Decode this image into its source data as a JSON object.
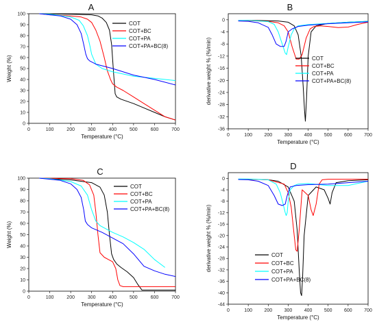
{
  "chart_data": [
    {
      "panel": "A",
      "type": "line",
      "xlabel": "Temperature (°C)",
      "ylabel": "Weight (%)",
      "xlim": [
        0,
        700
      ],
      "ylim": [
        0,
        100
      ],
      "xticks": [
        0,
        100,
        200,
        300,
        400,
        500,
        600,
        700
      ],
      "yticks": [
        0,
        10,
        20,
        30,
        40,
        50,
        60,
        70,
        80,
        90,
        100
      ],
      "legend_position": "top-right",
      "series": [
        {
          "name": "COT",
          "color": "#000000",
          "x": [
            50,
            100,
            200,
            300,
            330,
            350,
            370,
            385,
            395,
            405,
            412,
            420,
            440,
            500,
            550,
            600,
            650,
            700
          ],
          "y": [
            100,
            99.8,
            99.5,
            99,
            98,
            96,
            92,
            85,
            72,
            45,
            27,
            24,
            22,
            18,
            14,
            10,
            6,
            3
          ]
        },
        {
          "name": "COT+BC",
          "color": "#ff0000",
          "x": [
            50,
            100,
            200,
            250,
            280,
            300,
            320,
            340,
            360,
            375,
            390,
            400,
            420,
            450,
            500,
            550,
            600,
            650,
            700
          ],
          "y": [
            100,
            99,
            98,
            97,
            95,
            92,
            85,
            75,
            60,
            48,
            40,
            36,
            33,
            30,
            24,
            18,
            12,
            6,
            3
          ]
        },
        {
          "name": "COT+PA",
          "color": "#00ffff",
          "x": [
            50,
            100,
            200,
            240,
            260,
            280,
            290,
            300,
            320,
            350,
            400,
            500,
            600,
            700
          ],
          "y": [
            100,
            99.5,
            97,
            94,
            89,
            80,
            72,
            63,
            54,
            50,
            47,
            43,
            41,
            39
          ]
        },
        {
          "name": "COT+PA+BC(8)",
          "color": "#0000ff",
          "x": [
            50,
            100,
            150,
            200,
            230,
            250,
            262,
            272,
            280,
            290,
            320,
            400,
            500,
            600,
            700
          ],
          "y": [
            100,
            99,
            98,
            95,
            90,
            82,
            72,
            63,
            59,
            57,
            54,
            50,
            44,
            40,
            35
          ]
        }
      ]
    },
    {
      "panel": "B",
      "type": "line",
      "xlabel": "Temperature (°C)",
      "ylabel": "derivative weight % (%/min)",
      "xlim": [
        0,
        700
      ],
      "ylim": [
        -36,
        2
      ],
      "xticks": [
        0,
        100,
        200,
        300,
        400,
        500,
        600,
        700
      ],
      "yticks": [
        0,
        -4,
        -8,
        -12,
        -16,
        -20,
        -24,
        -28,
        -32,
        -36
      ],
      "legend_position": "center-right",
      "series": [
        {
          "name": "COT",
          "color": "#000000",
          "x": [
            50,
            100,
            200,
            250,
            300,
            330,
            350,
            365,
            375,
            382,
            386,
            392,
            400,
            415,
            440,
            500,
            600,
            700
          ],
          "y": [
            -0.3,
            -0.2,
            -0.3,
            -0.4,
            -0.8,
            -2,
            -5,
            -12,
            -22,
            -30,
            -33.5,
            -26,
            -12,
            -4,
            -2,
            -1.2,
            -0.8,
            -0.5
          ]
        },
        {
          "name": "COT+BC",
          "color": "#ff0000",
          "x": [
            50,
            100,
            200,
            250,
            280,
            300,
            320,
            340,
            355,
            370,
            390,
            410,
            430,
            460,
            500,
            550,
            600,
            650,
            700
          ],
          "y": [
            -0.3,
            -0.3,
            -0.5,
            -1,
            -2,
            -4,
            -9,
            -13,
            -13,
            -11.5,
            -6,
            -3,
            -2.2,
            -2,
            -2.2,
            -2.6,
            -2.4,
            -1.5,
            -0.8
          ]
        },
        {
          "name": "COT+PA",
          "color": "#00ffff",
          "x": [
            50,
            100,
            200,
            230,
            250,
            270,
            285,
            292,
            300,
            315,
            330,
            350,
            400,
            500,
            600,
            700
          ],
          "y": [
            -0.2,
            -0.2,
            -0.6,
            -1.5,
            -4,
            -8,
            -11,
            -11.5,
            -9,
            -5,
            -3,
            -2,
            -1.6,
            -1.2,
            -0.8,
            -0.5
          ]
        },
        {
          "name": "COT+PA+BC(8)",
          "color": "#0000ff",
          "x": [
            50,
            100,
            150,
            200,
            220,
            240,
            260,
            280,
            290,
            300,
            320,
            350,
            400,
            500,
            600,
            700
          ],
          "y": [
            -0.4,
            -0.5,
            -1,
            -2.5,
            -5,
            -8,
            -8.8,
            -8.8,
            -7,
            -4,
            -3,
            -2.2,
            -1.8,
            -1.3,
            -1,
            -0.7
          ]
        }
      ]
    },
    {
      "panel": "C",
      "type": "line",
      "xlabel": "Temperature (°C)",
      "ylabel": "Weight (%)",
      "xlim": [
        0,
        700
      ],
      "ylim": [
        0,
        100
      ],
      "xticks": [
        0,
        100,
        200,
        300,
        400,
        500,
        600,
        700
      ],
      "yticks": [
        0,
        10,
        20,
        30,
        40,
        50,
        60,
        70,
        80,
        90,
        100
      ],
      "legend_position": "top-right",
      "series": [
        {
          "name": "COT",
          "color": "#000000",
          "x": [
            50,
            100,
            200,
            300,
            340,
            360,
            375,
            385,
            395,
            405,
            420,
            440,
            470,
            500,
            520,
            540,
            560,
            600,
            700
          ],
          "y": [
            100,
            99.5,
            98.5,
            96,
            92,
            85,
            70,
            50,
            33,
            28,
            24,
            21,
            17,
            12,
            6,
            1,
            1,
            1,
            1
          ]
        },
        {
          "name": "COT+BC",
          "color": "#ff0000",
          "x": [
            50,
            100,
            200,
            260,
            290,
            310,
            320,
            330,
            340,
            360,
            380,
            400,
            415,
            425,
            435,
            450,
            500,
            600,
            700
          ],
          "y": [
            100,
            99.8,
            99.5,
            98,
            94,
            85,
            70,
            50,
            34,
            30,
            28,
            26,
            20,
            10,
            5,
            4,
            4,
            4,
            4
          ]
        },
        {
          "name": "COT+PA",
          "color": "#00ffff",
          "x": [
            50,
            100,
            200,
            250,
            280,
            300,
            320,
            340,
            370,
            400,
            450,
            500,
            550,
            600,
            650
          ],
          "y": [
            100,
            99.5,
            97,
            93,
            85,
            72,
            62,
            58,
            55,
            52,
            48,
            43,
            37,
            28,
            21
          ]
        },
        {
          "name": "COT+PA+BC(8)",
          "color": "#0000ff",
          "x": [
            50,
            100,
            150,
            200,
            230,
            250,
            262,
            270,
            280,
            300,
            350,
            400,
            450,
            500,
            550,
            600,
            650,
            700
          ],
          "y": [
            100,
            99,
            98,
            95,
            90,
            83,
            72,
            62,
            59,
            56,
            52,
            47,
            42,
            33,
            22,
            18,
            15,
            13
          ]
        }
      ]
    },
    {
      "panel": "D",
      "type": "line",
      "xlabel": "Temperature (°C)",
      "ylabel": "derivative weight % (%/min)",
      "xlim": [
        0,
        700
      ],
      "ylim": [
        -44,
        2
      ],
      "xticks": [
        0,
        100,
        200,
        300,
        400,
        500,
        600,
        700
      ],
      "yticks": [
        0,
        -4,
        -8,
        -12,
        -16,
        -20,
        -24,
        -28,
        -32,
        -36,
        -40,
        -44
      ],
      "legend_position": "bottom-center",
      "series": [
        {
          "name": "COT",
          "color": "#000000",
          "x": [
            50,
            100,
            200,
            250,
            300,
            330,
            345,
            355,
            362,
            367,
            372,
            380,
            400,
            440,
            480,
            500,
            510,
            520,
            540,
            600,
            700
          ],
          "y": [
            -0.3,
            -0.3,
            -0.5,
            -1,
            -3,
            -8,
            -18,
            -32,
            -40,
            -41,
            -35,
            -20,
            -6,
            -3,
            -4,
            -7,
            -9,
            -5,
            -1.5,
            -0.8,
            -0.5
          ]
        },
        {
          "name": "COT+BC",
          "color": "#ff0000",
          "x": [
            50,
            100,
            200,
            280,
            300,
            315,
            330,
            338,
            345,
            355,
            370,
            400,
            415,
            425,
            440,
            455,
            470,
            500,
            600,
            700
          ],
          "y": [
            -0.3,
            -0.3,
            -0.5,
            -2,
            -5,
            -10,
            -20,
            -25,
            -25.5,
            -18,
            -4,
            -6,
            -11,
            -13,
            -9,
            -2,
            -0.5,
            -0.3,
            -0.3,
            -0.3
          ]
        },
        {
          "name": "COT+PA",
          "color": "#00ffff",
          "x": [
            50,
            100,
            200,
            240,
            260,
            275,
            285,
            290,
            295,
            300,
            310,
            330,
            350,
            400,
            500,
            600,
            700
          ],
          "y": [
            -0.2,
            -0.2,
            -0.5,
            -2,
            -5,
            -9,
            -12,
            -13,
            -12,
            -8,
            -4,
            -2.5,
            -2,
            -1.8,
            -2.5,
            -2.5,
            -1
          ]
        },
        {
          "name": "COT+PA+BC(8)",
          "color": "#0000ff",
          "x": [
            50,
            100,
            150,
            200,
            230,
            250,
            270,
            285,
            295,
            310,
            340,
            400,
            500,
            600,
            700
          ],
          "y": [
            -0.4,
            -0.5,
            -1,
            -2.5,
            -6,
            -9,
            -9.5,
            -9,
            -6,
            -3,
            -2.5,
            -2.2,
            -2,
            -1.5,
            -1
          ]
        }
      ]
    }
  ]
}
